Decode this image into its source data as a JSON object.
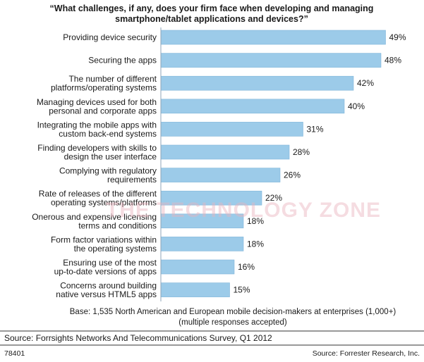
{
  "chart_data": {
    "type": "bar",
    "orientation": "horizontal",
    "title": "“What challenges, if any, does your firm face when developing and managing smartphone/tablet applications and devices?”",
    "title_lines": [
      "“What challenges, if any, does your firm face when developing and managing",
      "smartphone/tablet applications and devices?”"
    ],
    "categories": [
      [
        "Providing device security"
      ],
      [
        "Securing the apps"
      ],
      [
        "The number of different",
        "platforms/operating systems"
      ],
      [
        "Managing devices used for both",
        "personal and corporate apps"
      ],
      [
        "Integrating the mobile apps with",
        "custom back-end systems"
      ],
      [
        "Finding developers with skills to",
        "design the user interface"
      ],
      [
        "Complying with regulatory",
        "requirements"
      ],
      [
        "Rate of releases of the different",
        "operating systems/platforms"
      ],
      [
        "Onerous and expensive licensing",
        "terms and conditions"
      ],
      [
        "Form factor variations within",
        "the operating systems"
      ],
      [
        "Ensuring use of the most",
        "up-to-date versions of apps"
      ],
      [
        "Concerns around building",
        "native versus HTML5 apps"
      ]
    ],
    "values": [
      49,
      48,
      42,
      40,
      31,
      28,
      26,
      22,
      18,
      18,
      16,
      15
    ],
    "value_labels": [
      "49%",
      "48%",
      "42%",
      "40%",
      "31%",
      "28%",
      "26%",
      "22%",
      "18%",
      "18%",
      "16%",
      "15%"
    ],
    "xlim": [
      0,
      50
    ],
    "bar_color": "#9ccbe9",
    "bar_edge_color": "#7fb4d9",
    "grid": false,
    "legend": "none"
  },
  "base_note_lines": [
    "Base: 1,535 North American and European mobile decision-makers at enterprises (1,000+)",
    "(multiple responses accepted)"
  ],
  "source": "Source: Forrsights Networks And Telecommunications Survey, Q1 2012",
  "figure_id": "78401",
  "credit": "Source: Forrester Research, Inc.",
  "watermark": "THE TECHNOLOGY ZONE",
  "colors": {
    "rule": "#333333",
    "watermark": "#e9b3bd"
  }
}
